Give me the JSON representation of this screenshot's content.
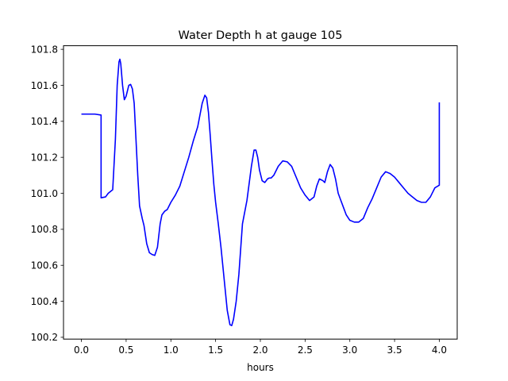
{
  "chart_data": {
    "type": "line",
    "title": "Water Depth h at gauge 105",
    "xlabel": "hours",
    "ylabel": "",
    "xlim": [
      -0.2,
      4.2
    ],
    "ylim": [
      100.19,
      101.82
    ],
    "xticks": [
      0.0,
      0.5,
      1.0,
      1.5,
      2.0,
      2.5,
      3.0,
      3.5,
      4.0
    ],
    "xtick_labels": [
      "0.0",
      "0.5",
      "1.0",
      "1.5",
      "2.0",
      "2.5",
      "3.0",
      "3.5",
      "4.0"
    ],
    "yticks": [
      100.2,
      100.4,
      100.6,
      100.8,
      101.0,
      101.2,
      101.4,
      101.6,
      101.8
    ],
    "ytick_labels": [
      "100.2",
      "100.4",
      "100.6",
      "100.8",
      "101.0",
      "101.2",
      "101.4",
      "101.6",
      "101.8"
    ],
    "grid": false,
    "legend": "none",
    "series": [
      {
        "color": "#0000ff",
        "x": [
          0.0,
          0.1,
          0.15,
          0.22,
          0.22,
          0.27,
          0.3,
          0.35,
          0.38,
          0.4,
          0.42,
          0.43,
          0.44,
          0.46,
          0.48,
          0.5,
          0.53,
          0.55,
          0.57,
          0.59,
          0.61,
          0.63,
          0.65,
          0.68,
          0.7,
          0.73,
          0.76,
          0.79,
          0.82,
          0.85,
          0.88,
          0.9,
          0.93,
          0.96,
          1.0,
          1.05,
          1.1,
          1.15,
          1.2,
          1.25,
          1.3,
          1.35,
          1.38,
          1.4,
          1.42,
          1.44,
          1.46,
          1.48,
          1.5,
          1.53,
          1.56,
          1.6,
          1.63,
          1.66,
          1.68,
          1.7,
          1.73,
          1.76,
          1.8,
          1.85,
          1.9,
          1.93,
          1.95,
          1.97,
          1.99,
          2.02,
          2.05,
          2.08,
          2.1,
          2.12,
          2.15,
          2.2,
          2.25,
          2.3,
          2.35,
          2.4,
          2.45,
          2.5,
          2.55,
          2.6,
          2.63,
          2.66,
          2.7,
          2.72,
          2.75,
          2.78,
          2.81,
          2.84,
          2.87,
          2.9,
          2.93,
          2.96,
          3.0,
          3.05,
          3.1,
          3.15,
          3.2,
          3.25,
          3.3,
          3.35,
          3.4,
          3.45,
          3.5,
          3.55,
          3.6,
          3.65,
          3.7,
          3.75,
          3.8,
          3.85,
          3.9,
          3.95,
          4.0,
          4.0
        ],
        "y": [
          101.44,
          101.44,
          101.44,
          101.435,
          100.975,
          100.98,
          101.0,
          101.02,
          101.3,
          101.6,
          101.73,
          101.745,
          101.72,
          101.6,
          101.52,
          101.54,
          101.6,
          101.605,
          101.58,
          101.5,
          101.3,
          101.1,
          100.93,
          100.86,
          100.82,
          100.72,
          100.67,
          100.66,
          100.655,
          100.7,
          100.83,
          100.88,
          100.9,
          100.91,
          100.95,
          100.99,
          101.04,
          101.12,
          101.2,
          101.29,
          101.37,
          101.5,
          101.545,
          101.53,
          101.45,
          101.32,
          101.18,
          101.05,
          100.95,
          100.83,
          100.7,
          100.5,
          100.35,
          100.27,
          100.265,
          100.3,
          100.4,
          100.55,
          100.83,
          100.96,
          101.15,
          101.24,
          101.24,
          101.2,
          101.13,
          101.07,
          101.06,
          101.08,
          101.085,
          101.085,
          101.1,
          101.15,
          101.18,
          101.175,
          101.15,
          101.09,
          101.03,
          100.99,
          100.96,
          100.98,
          101.04,
          101.08,
          101.07,
          101.06,
          101.12,
          101.16,
          101.14,
          101.08,
          101.0,
          100.96,
          100.92,
          100.88,
          100.85,
          100.84,
          100.84,
          100.86,
          100.92,
          100.97,
          101.03,
          101.09,
          101.12,
          101.11,
          101.09,
          101.06,
          101.03,
          101.0,
          100.98,
          100.96,
          100.95,
          100.95,
          100.98,
          101.03,
          101.045,
          101.505
        ]
      }
    ]
  }
}
